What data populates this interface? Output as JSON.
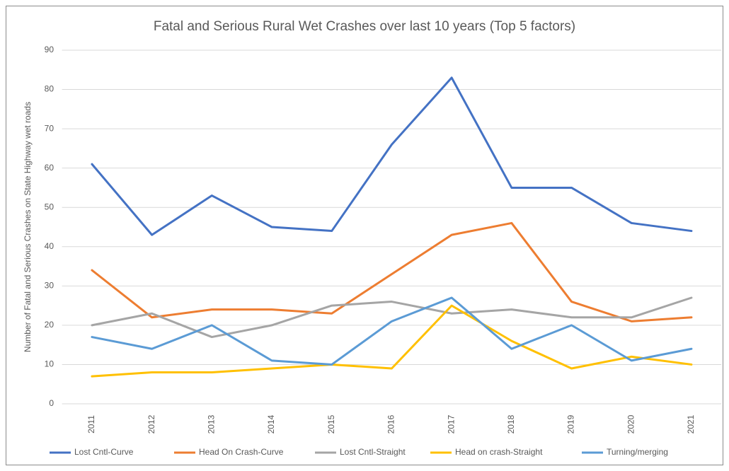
{
  "chart_data": {
    "type": "line",
    "title": "Fatal and Serious Rural Wet Crashes over last 10 years (Top 5 factors)",
    "y_label": "Number of Fatal and Serious Crashes on State Highway wet roads",
    "categories": [
      "2011",
      "2012",
      "2013",
      "2014",
      "2015",
      "2016",
      "2017",
      "2018",
      "2019",
      "2020",
      "2021"
    ],
    "series": [
      {
        "name": "Lost Cntl-Curve",
        "color": "#4472c4",
        "values": [
          61,
          43,
          53,
          45,
          44,
          66,
          83,
          55,
          55,
          46,
          44
        ]
      },
      {
        "name": "Head On Crash-Curve",
        "color": "#ed7d31",
        "values": [
          34,
          22,
          24,
          24,
          23,
          33,
          43,
          46,
          26,
          21,
          22
        ]
      },
      {
        "name": "Lost Cntl-Straight",
        "color": "#a5a5a5",
        "values": [
          20,
          23,
          17,
          20,
          25,
          26,
          23,
          24,
          22,
          22,
          27
        ]
      },
      {
        "name": "Head on crash-Straight",
        "color": "#ffc000",
        "values": [
          7,
          8,
          8,
          9,
          10,
          9,
          25,
          16,
          9,
          12,
          10
        ]
      },
      {
        "name": "Turning/merging",
        "color": "#5b9bd5",
        "values": [
          17,
          14,
          20,
          11,
          10,
          21,
          27,
          14,
          20,
          11,
          14
        ]
      }
    ],
    "ylim": [
      0,
      90
    ],
    "yticks": [
      0,
      10,
      20,
      30,
      40,
      50,
      60,
      70,
      80,
      90
    ],
    "grid": true,
    "legend": "bottom"
  }
}
